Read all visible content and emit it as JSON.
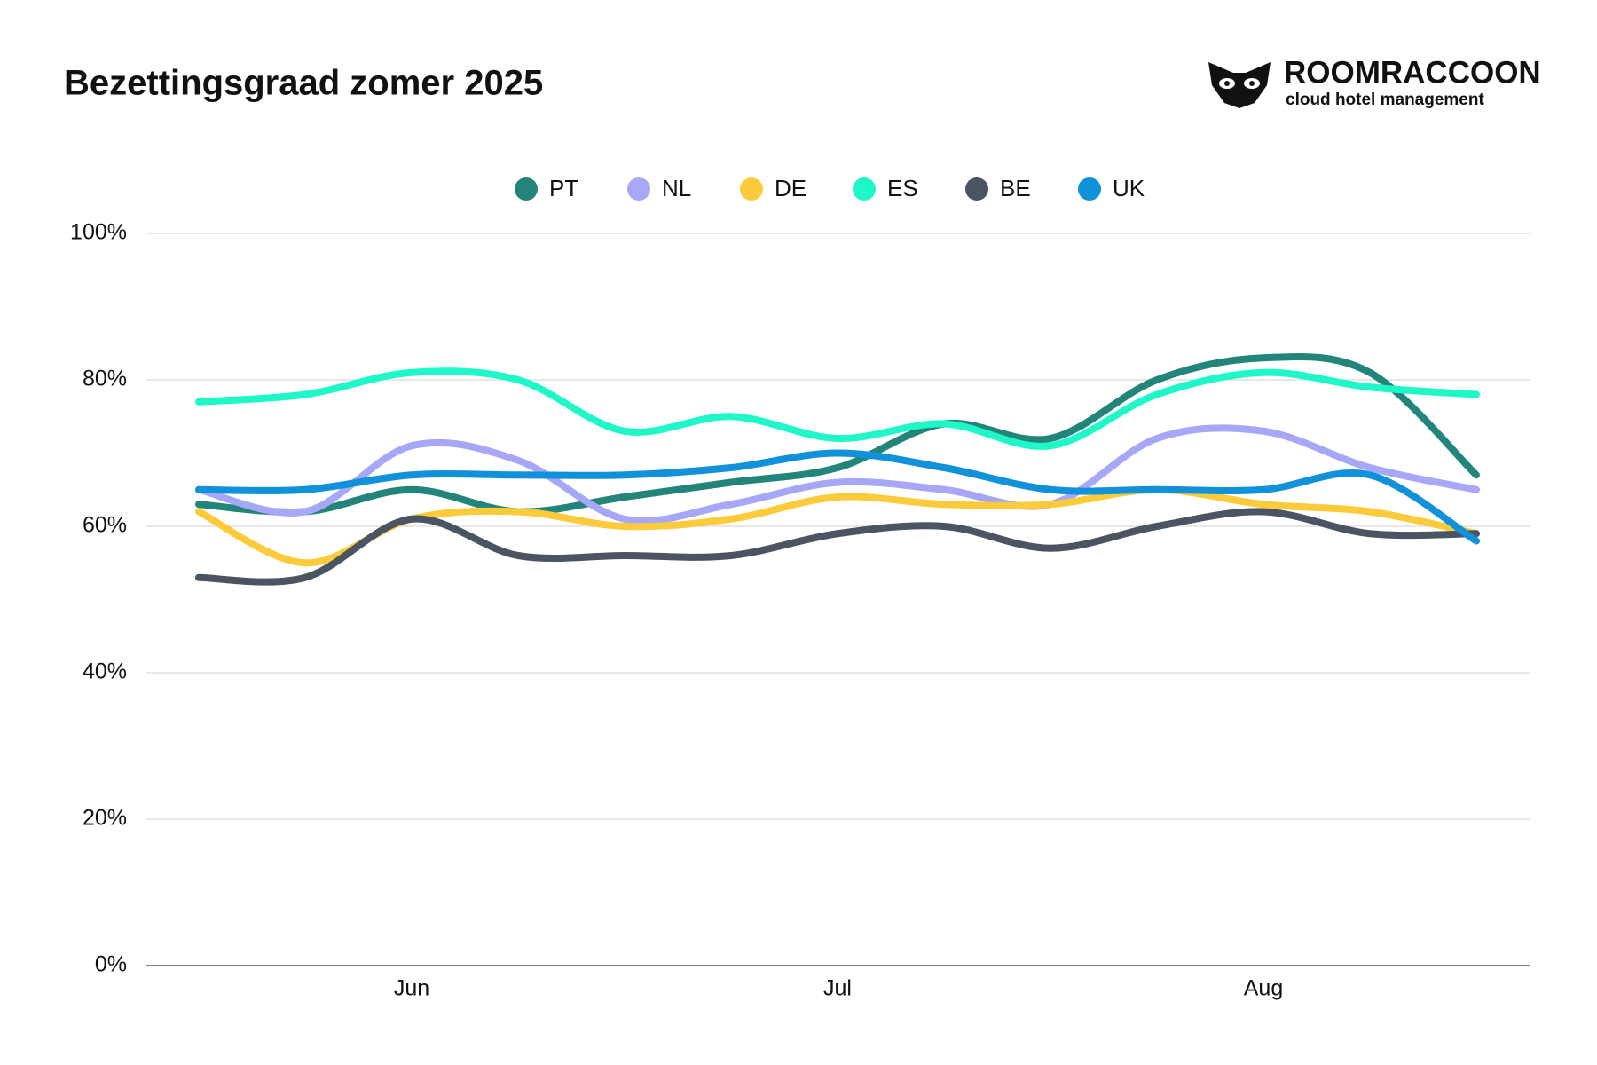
{
  "chart_data": {
    "type": "line",
    "title": "Bezettingsgraad zomer 2025",
    "logo": {
      "name": "ROOMRACCOON",
      "tagline": "cloud hotel management"
    },
    "categories": [
      null,
      null,
      "Jun",
      null,
      null,
      null,
      "Jul",
      null,
      null,
      null,
      "Aug",
      null,
      null
    ],
    "series": [
      {
        "name": "PT",
        "color": "#23857a",
        "values": [
          63,
          62,
          65,
          62,
          64,
          66,
          68,
          74,
          72,
          80,
          83,
          81,
          67
        ]
      },
      {
        "name": "NL",
        "color": "#a7a7f7",
        "values": [
          65,
          62,
          71,
          69,
          61,
          63,
          66,
          65,
          63,
          72,
          73,
          68,
          65
        ]
      },
      {
        "name": "DE",
        "color": "#fccb3c",
        "values": [
          62,
          55,
          61,
          62,
          60,
          61,
          64,
          63,
          63,
          65,
          63,
          62,
          59
        ]
      },
      {
        "name": "ES",
        "color": "#1ff7c8",
        "values": [
          77,
          78,
          81,
          80,
          73,
          75,
          72,
          74,
          71,
          78,
          81,
          79,
          78
        ]
      },
      {
        "name": "BE",
        "color": "#4a5463",
        "values": [
          53,
          53,
          61,
          56,
          56,
          56,
          59,
          60,
          57,
          60,
          62,
          59,
          59
        ]
      },
      {
        "name": "UK",
        "color": "#1191da",
        "values": [
          65,
          65,
          67,
          67,
          67,
          68,
          70,
          68,
          65,
          65,
          65,
          67,
          58
        ]
      }
    ],
    "ylim": [
      0,
      100
    ],
    "yticks": [
      {
        "value": 0,
        "label": "0%"
      },
      {
        "value": 20,
        "label": "20%"
      },
      {
        "value": 40,
        "label": "40%"
      },
      {
        "value": 60,
        "label": "60%"
      },
      {
        "value": 80,
        "label": "80%"
      },
      {
        "value": 100,
        "label": "100%"
      }
    ],
    "grid": true,
    "legend": "top"
  }
}
